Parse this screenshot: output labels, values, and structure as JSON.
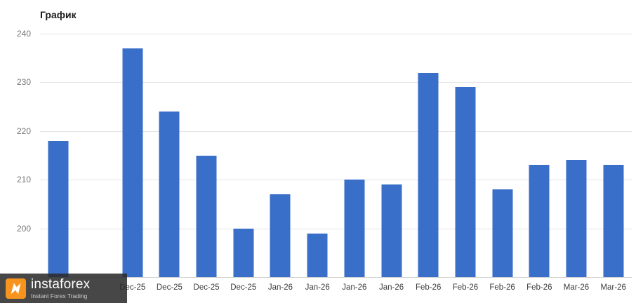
{
  "page": {
    "background": "#ffffff"
  },
  "chart_data": {
    "type": "bar",
    "title": "График",
    "categories": [
      "",
      "",
      "Dec-25",
      "Dec-25",
      "Dec-25",
      "Dec-25",
      "Jan-26",
      "Jan-26",
      "Jan-26",
      "Jan-26",
      "Feb-26",
      "Feb-26",
      "Feb-26",
      "Feb-26",
      "Mar-26",
      "Mar-26"
    ],
    "values": [
      218,
      null,
      237,
      224,
      215,
      200,
      207,
      199,
      210,
      209,
      232,
      229,
      208,
      213,
      214,
      213
    ],
    "y_ticks": [
      240,
      230,
      220,
      210,
      200
    ],
    "ylim": [
      190,
      240
    ],
    "bar_color": "#3a6fc9",
    "grid": true,
    "legend": false,
    "xlabel": "",
    "ylabel": ""
  },
  "watermark": {
    "brand_name": "instaforex",
    "tagline": "Instant Forex Trading",
    "logo_color": "#f7941d"
  }
}
